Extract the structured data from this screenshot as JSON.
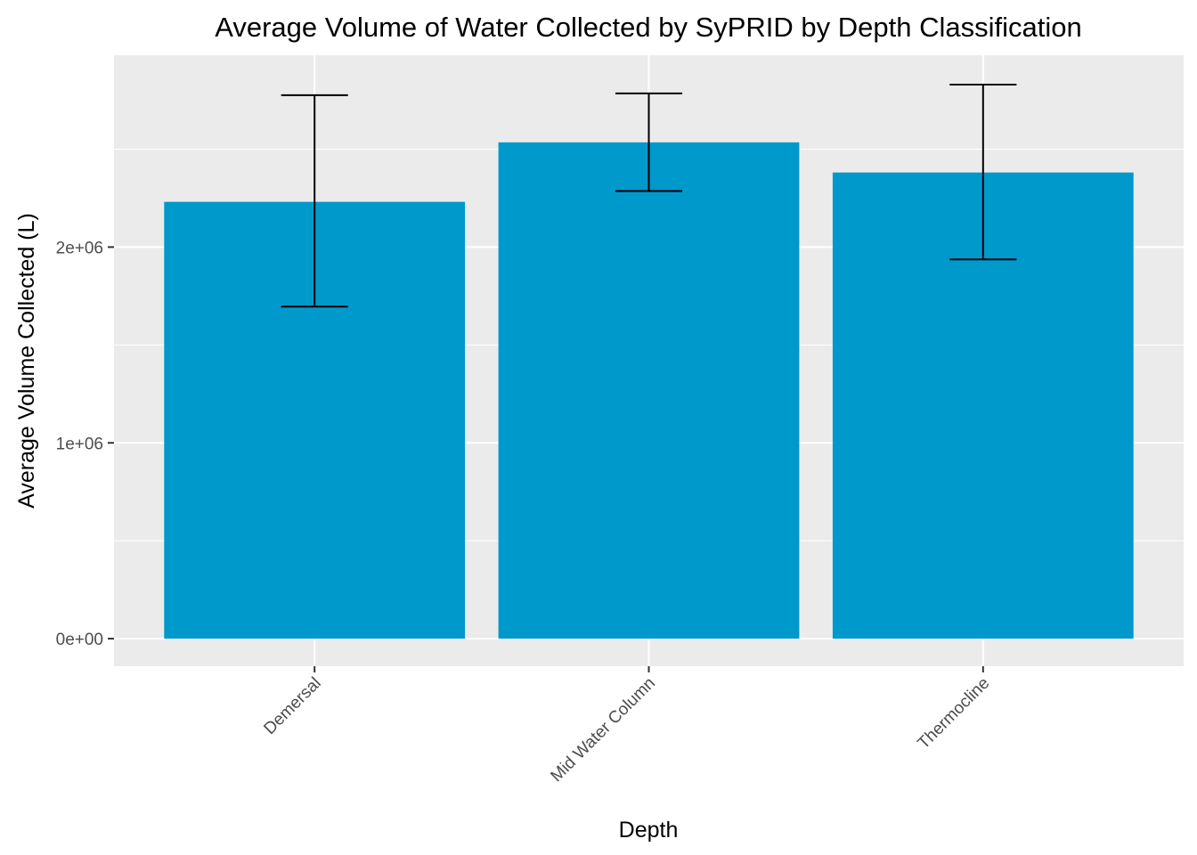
{
  "chart_data": {
    "type": "bar",
    "title": "Average Volume of Water Collected by SyPRID by Depth Classification",
    "xlabel": "Depth",
    "ylabel": "Average Volume Collected (L)",
    "categories": [
      "Demersal",
      "Mid Water Column",
      "Thermocline"
    ],
    "values": [
      2231000,
      2535000,
      2381000
    ],
    "error_bars": [
      {
        "lower": 1696000,
        "upper": 2776000
      },
      {
        "lower": 2286000,
        "upper": 2785000
      },
      {
        "lower": 1937000,
        "upper": 2830000
      }
    ],
    "ylim": [
      -140600,
      2980000
    ],
    "yticks": [
      {
        "value": 0,
        "label": "0e+00"
      },
      {
        "value": 1000000,
        "label": "1e+06"
      },
      {
        "value": 2000000,
        "label": "2e+06"
      }
    ],
    "yminor": [
      500000,
      1500000,
      2500000
    ],
    "grid": true,
    "legend": "none",
    "bar_color": "#0099CC",
    "panel_color": "#EBEBEB"
  }
}
